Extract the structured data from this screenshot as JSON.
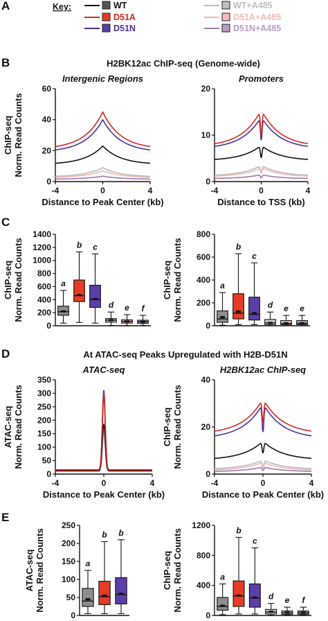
{
  "colors": {
    "WT": "#111111",
    "D51A": "#d7261e",
    "D51N": "#4b2f9a",
    "WT+A485": "#b9b9b9",
    "D51A+A485": "#f2b5b7",
    "D51N+A485": "#9a7aa6"
  },
  "box_fills": [
    "#8c8c8c",
    "#e63b26",
    "#5b3ea8",
    "#cfcfcf",
    "#f5b8b8",
    "#b89cc4"
  ],
  "key": {
    "title": "Key:",
    "entries": [
      {
        "label": "WT",
        "color": "#111111",
        "group": "untreated",
        "fill": "#555555"
      },
      {
        "label": "D51A",
        "color": "#d7261e",
        "group": "untreated",
        "fill": "#e63b26"
      },
      {
        "label": "D51N",
        "color": "#4b2f9a",
        "group": "untreated",
        "fill": "#5b3ea8"
      },
      {
        "label": "WT+A485",
        "color": "#b9b9b9",
        "group": "treated",
        "fill": "#bdbdbd"
      },
      {
        "label": "D51A+A485",
        "color": "#f2b5b7",
        "group": "treated",
        "fill": "#f5b8b8"
      },
      {
        "label": "D51N+A485",
        "color": "#9a7aa6",
        "group": "treated",
        "fill": "#b89cc4"
      }
    ]
  },
  "panels": {
    "A": "A",
    "B": "B",
    "C": "C",
    "D": "D",
    "E": "E"
  },
  "section_titles": {
    "B": "H2BK12ac ChIP-seq (Genome-wide)",
    "D": "At ATAC-seq Peaks Upregulated with H2B-D51N"
  },
  "chart_data": [
    {
      "id": "B-left",
      "type": "line",
      "subtitle": "Intergenic Regions",
      "xlabel": "Distance to Peak Center (kb)",
      "ylabel": [
        "ChIP-seq",
        "Norm. Read Counts"
      ],
      "xlim": [
        -4,
        4
      ],
      "ylim": [
        0,
        60
      ],
      "xticks": [
        -4,
        0,
        4
      ],
      "yticks": [
        0,
        20,
        40,
        60
      ],
      "profile": "peak",
      "width": 1.5,
      "series": [
        {
          "name": "WT",
          "base": 11,
          "peak": 23
        },
        {
          "name": "D51A",
          "base": 21,
          "peak": 45
        },
        {
          "name": "D51N",
          "base": 19,
          "peak": 40
        },
        {
          "name": "WT+A485",
          "base": 3,
          "peak": 9
        },
        {
          "name": "D51A+A485",
          "base": 2.5,
          "peak": 7
        },
        {
          "name": "D51N+A485",
          "base": 1.5,
          "peak": 3.5
        }
      ]
    },
    {
      "id": "B-right",
      "type": "line",
      "subtitle": "Promoters",
      "xlabel": "Distance to TSS (kb)",
      "ylabel": [],
      "xlim": [
        -4,
        4
      ],
      "ylim": [
        0,
        20
      ],
      "xticks": [
        -4,
        0,
        4
      ],
      "yticks": [
        0,
        10,
        20
      ],
      "profile": "tss",
      "series": [
        {
          "name": "WT",
          "base": 4.5,
          "peak": 7.8,
          "dip": 5.2
        },
        {
          "name": "D51A",
          "base": 7.5,
          "peak": 15.5,
          "dip": 10.0
        },
        {
          "name": "D51N",
          "base": 7.0,
          "peak": 14.0,
          "dip": 9.0
        },
        {
          "name": "WT+A485",
          "base": 1.2,
          "peak": 3.5,
          "dip": 2.0
        },
        {
          "name": "D51A+A485",
          "base": 1.0,
          "peak": 3.0,
          "dip": 1.8
        },
        {
          "name": "D51N+A485",
          "base": 0.6,
          "peak": 1.5,
          "dip": 0.8
        }
      ]
    },
    {
      "id": "C-left",
      "type": "box",
      "ylabel": [
        "ChIP-seq",
        "Norm. Read Counts"
      ],
      "ylim": [
        0,
        1400
      ],
      "yticks": [
        0,
        200,
        400,
        600,
        800,
        1000,
        1200,
        1400
      ],
      "letters": [
        "a",
        "b",
        "c",
        "d",
        "e",
        "f"
      ],
      "boxes": [
        {
          "whislo": 40,
          "q1": 160,
          "med": 215,
          "q3": 300,
          "whishi": 540,
          "mean": 220
        },
        {
          "whislo": 50,
          "q1": 370,
          "med": 460,
          "q3": 700,
          "whishi": 1130,
          "mean": 470
        },
        {
          "whislo": 40,
          "q1": 280,
          "med": 400,
          "q3": 620,
          "whishi": 1100,
          "mean": 410
        },
        {
          "whislo": 5,
          "q1": 55,
          "med": 85,
          "q3": 110,
          "whishi": 210,
          "mean": 85
        },
        {
          "whislo": 5,
          "q1": 40,
          "med": 65,
          "q3": 90,
          "whishi": 170,
          "mean": 65
        },
        {
          "whislo": 5,
          "q1": 35,
          "med": 60,
          "q3": 85,
          "whishi": 160,
          "mean": 60
        }
      ]
    },
    {
      "id": "C-right",
      "type": "box",
      "ylabel": [
        "ChIP-seq",
        "Norm. Read Counts"
      ],
      "ylim": [
        0,
        800
      ],
      "yticks": [
        0,
        200,
        400,
        600,
        800
      ],
      "letters": [
        "a",
        "b",
        "c",
        "d",
        "e",
        "e"
      ],
      "boxes": [
        {
          "whislo": 5,
          "q1": 30,
          "med": 60,
          "q3": 130,
          "whishi": 290,
          "mean": 75
        },
        {
          "whislo": 10,
          "q1": 60,
          "med": 110,
          "q3": 280,
          "whishi": 630,
          "mean": 125
        },
        {
          "whislo": 10,
          "q1": 50,
          "med": 100,
          "q3": 250,
          "whishi": 550,
          "mean": 110
        },
        {
          "whislo": 0,
          "q1": 10,
          "med": 25,
          "q3": 55,
          "whishi": 120,
          "mean": 25
        },
        {
          "whislo": 0,
          "q1": 10,
          "med": 20,
          "q3": 45,
          "whishi": 90,
          "mean": 22
        },
        {
          "whislo": 0,
          "q1": 10,
          "med": 20,
          "q3": 45,
          "whishi": 90,
          "mean": 22
        }
      ]
    },
    {
      "id": "D-left",
      "type": "line",
      "subtitle": "ATAC-seq",
      "xlabel": "Distance to Peak Center (kb)",
      "ylabel": [
        "ATAC-seq",
        "Norm. Read Counts"
      ],
      "xlim": [
        -4,
        4
      ],
      "ylim": [
        0,
        350
      ],
      "xticks": [
        -4,
        0,
        4
      ],
      "yticks": [
        0,
        50,
        100,
        150,
        200,
        250,
        300,
        350
      ],
      "profile": "spike",
      "width": 0.12,
      "series": [
        {
          "name": "WT",
          "base": 12,
          "peak": 185
        },
        {
          "name": "D51A",
          "base": 15,
          "peak": 300
        },
        {
          "name": "D51N",
          "base": 16,
          "peak": 310
        },
        {
          "name": "WT+A485",
          "base": 11,
          "peak": 160
        },
        {
          "name": "D51A+A485",
          "base": 13,
          "peak": 280
        },
        {
          "name": "D51N+A485",
          "base": 14,
          "peak": 290
        }
      ]
    },
    {
      "id": "D-right",
      "type": "line",
      "subtitle": "H2BK12ac ChIP-seq",
      "xlabel": "Distance to Peak Center (kb)",
      "ylabel": [
        "ChIP-seq",
        "Norm. Read Counts"
      ],
      "xlim": [
        -4,
        4
      ],
      "ylim": [
        0,
        40
      ],
      "xticks": [
        -4,
        0,
        4
      ],
      "yticks": [
        0,
        20,
        40
      ],
      "profile": "tss",
      "series": [
        {
          "name": "WT",
          "base": 6,
          "peak": 14,
          "dip": 9
        },
        {
          "name": "D51A",
          "base": 17,
          "peak": 32,
          "dip": 22
        },
        {
          "name": "D51N",
          "base": 15,
          "peak": 30,
          "dip": 18
        },
        {
          "name": "WT+A485",
          "base": 2,
          "peak": 6,
          "dip": 3
        },
        {
          "name": "D51A+A485",
          "base": 1.5,
          "peak": 5,
          "dip": 2.5
        },
        {
          "name": "D51N+A485",
          "base": 1,
          "peak": 3,
          "dip": 1.5
        }
      ]
    },
    {
      "id": "E-left",
      "type": "box",
      "ylabel": [
        "ATAC-seq",
        "Norm. Read Counts"
      ],
      "ylim": [
        0,
        250
      ],
      "yticks": [
        0,
        50,
        100,
        150,
        200,
        250
      ],
      "letters": [
        "a",
        "b",
        "b"
      ],
      "boxes": [
        {
          "whislo": 5,
          "q1": 25,
          "med": 40,
          "q3": 75,
          "whishi": 125,
          "mean": 45
        },
        {
          "whislo": 5,
          "q1": 30,
          "med": 52,
          "q3": 95,
          "whishi": 205,
          "mean": 55
        },
        {
          "whislo": 5,
          "q1": 32,
          "med": 58,
          "q3": 105,
          "whishi": 210,
          "mean": 60
        }
      ]
    },
    {
      "id": "E-right",
      "type": "box",
      "ylabel": [
        "ChIP-seq",
        "Norm. Read Counts"
      ],
      "ylim": [
        0,
        1200
      ],
      "yticks": [
        0,
        400,
        800,
        1200
      ],
      "letters": [
        "a",
        "b",
        "c",
        "d",
        "e",
        "f"
      ],
      "boxes": [
        {
          "whislo": 10,
          "q1": 70,
          "med": 120,
          "q3": 240,
          "whishi": 420,
          "mean": 130
        },
        {
          "whislo": 20,
          "q1": 120,
          "med": 260,
          "q3": 460,
          "whishi": 1040,
          "mean": 265
        },
        {
          "whislo": 20,
          "q1": 110,
          "med": 230,
          "q3": 420,
          "whishi": 900,
          "mean": 240
        },
        {
          "whislo": 5,
          "q1": 20,
          "med": 45,
          "q3": 80,
          "whishi": 160,
          "mean": 50
        },
        {
          "whislo": 5,
          "q1": 15,
          "med": 35,
          "q3": 60,
          "whishi": 110,
          "mean": 38
        },
        {
          "whislo": 5,
          "q1": 15,
          "med": 35,
          "q3": 60,
          "whishi": 110,
          "mean": 38
        }
      ]
    }
  ]
}
